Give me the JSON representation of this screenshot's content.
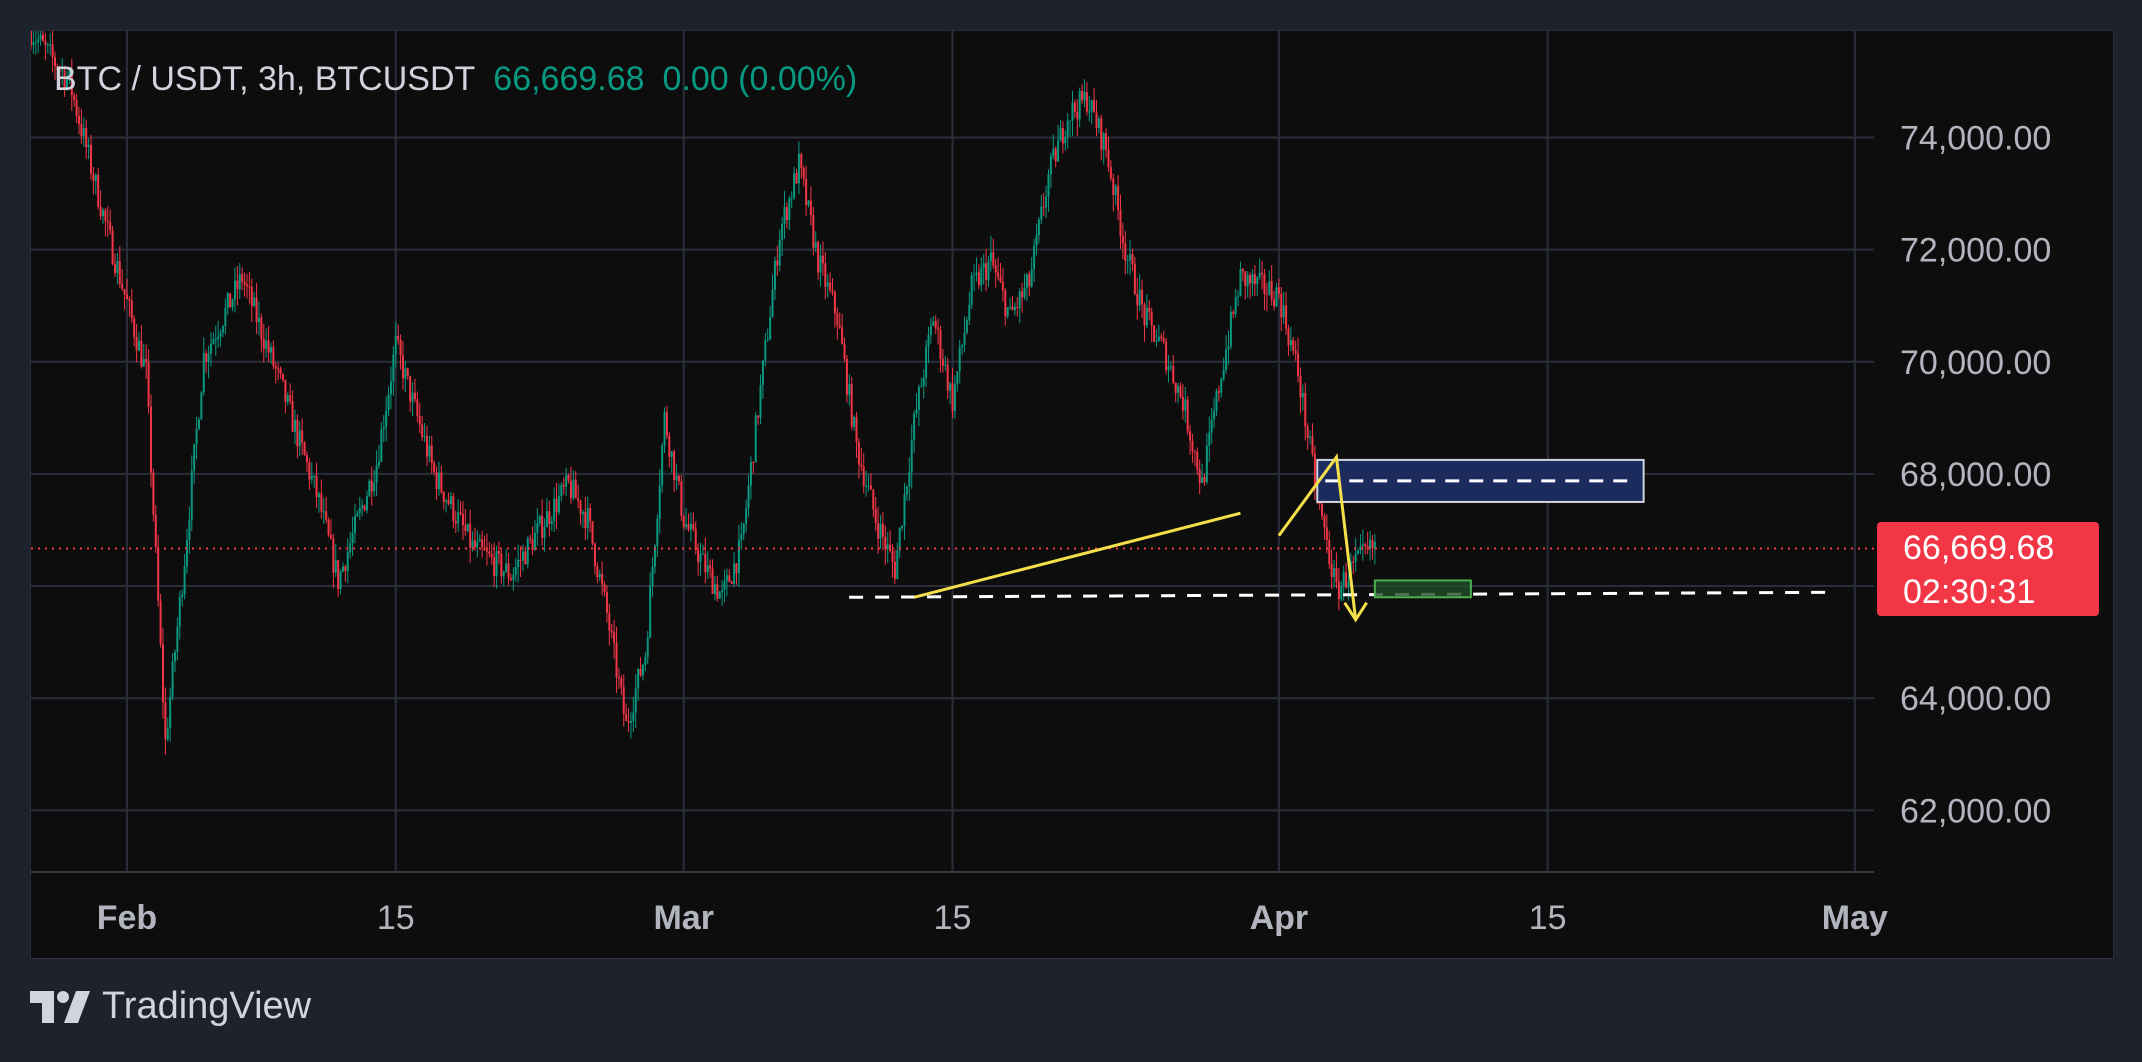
{
  "header": {
    "symbol": "BTC / USDT, 3h, BTCUSDT",
    "last_price": "66,669.68",
    "change": "0.00 (0.00%)"
  },
  "price_badge": {
    "price": "66,669.68",
    "countdown": "02:30:31",
    "color": "#f23645"
  },
  "branding": {
    "name": "TradingView",
    "icon": "tradingview-logo-icon"
  },
  "colors": {
    "up": "#089981",
    "down": "#f23645",
    "grid": "#2a2e39",
    "annotation": "#f5e04a",
    "zone_fill": "#1b2b5e",
    "zone_green": "#4caf50"
  },
  "chart_data": {
    "type": "candlestick",
    "title": "BTC / USDT, 3h, BTCUSDT",
    "x_range": [
      "2024-01-27",
      "2024-05-02"
    ],
    "y_range": [
      60900,
      75900
    ],
    "grid": true,
    "x_ticks": [
      {
        "label": "Feb",
        "date": "2024-02-01",
        "bold": true
      },
      {
        "label": "15",
        "date": "2024-02-15",
        "bold": false
      },
      {
        "label": "Mar",
        "date": "2024-03-01",
        "bold": true
      },
      {
        "label": "15",
        "date": "2024-03-15",
        "bold": false
      },
      {
        "label": "Apr",
        "date": "2024-04-01",
        "bold": true
      },
      {
        "label": "15",
        "date": "2024-04-15",
        "bold": false
      },
      {
        "label": "May",
        "date": "2024-05-01",
        "bold": true
      }
    ],
    "y_ticks": [
      {
        "label": "74,000.00",
        "value": 74000
      },
      {
        "label": "72,000.00",
        "value": 72000
      },
      {
        "label": "70,000.00",
        "value": 70000
      },
      {
        "label": "68,000.00",
        "value": 68000
      },
      {
        "label": "64,000.00",
        "value": 64000
      },
      {
        "label": "62,000.00",
        "value": 62000
      }
    ],
    "extra_gridline": 66000,
    "last_price": 66669.68,
    "price_path": [
      [
        "2024-01-27",
        75900
      ],
      [
        "2024-01-29",
        75000
      ],
      [
        "2024-01-31",
        72300
      ],
      [
        "2024-02-02",
        69800
      ],
      [
        "2024-02-03",
        63200
      ],
      [
        "2024-02-04",
        66500
      ],
      [
        "2024-02-05",
        70100
      ],
      [
        "2024-02-07",
        71500
      ],
      [
        "2024-02-09",
        69600
      ],
      [
        "2024-02-11",
        67500
      ],
      [
        "2024-02-12",
        66100
      ],
      [
        "2024-02-14",
        68200
      ],
      [
        "2024-02-15",
        70300
      ],
      [
        "2024-02-17",
        68000
      ],
      [
        "2024-02-19",
        66700
      ],
      [
        "2024-02-21",
        66200
      ],
      [
        "2024-02-23",
        67300
      ],
      [
        "2024-02-24",
        67800
      ],
      [
        "2024-02-25",
        67200
      ],
      [
        "2024-02-26",
        65500
      ],
      [
        "2024-02-27",
        63500
      ],
      [
        "2024-02-28",
        64800
      ],
      [
        "2024-02-29",
        69000
      ],
      [
        "2024-03-01",
        67200
      ],
      [
        "2024-03-02",
        66400
      ],
      [
        "2024-03-03",
        65800
      ],
      [
        "2024-03-04",
        66700
      ],
      [
        "2024-03-05",
        69500
      ],
      [
        "2024-03-06",
        72300
      ],
      [
        "2024-03-07",
        73500
      ],
      [
        "2024-03-08",
        71800
      ],
      [
        "2024-03-09",
        70800
      ],
      [
        "2024-03-10",
        68500
      ],
      [
        "2024-03-11",
        67200
      ],
      [
        "2024-03-12",
        66300
      ],
      [
        "2024-03-13",
        68900
      ],
      [
        "2024-03-14",
        70800
      ],
      [
        "2024-03-15",
        69300
      ],
      [
        "2024-03-16",
        71300
      ],
      [
        "2024-03-17",
        71800
      ],
      [
        "2024-03-18",
        70800
      ],
      [
        "2024-03-19",
        71400
      ],
      [
        "2024-03-20",
        73300
      ],
      [
        "2024-03-21",
        74400
      ],
      [
        "2024-03-22",
        74700
      ],
      [
        "2024-03-23",
        73800
      ],
      [
        "2024-03-24",
        72000
      ],
      [
        "2024-03-25",
        70800
      ],
      [
        "2024-03-26",
        70200
      ],
      [
        "2024-03-27",
        69300
      ],
      [
        "2024-03-28",
        67800
      ],
      [
        "2024-03-29",
        69800
      ],
      [
        "2024-03-30",
        71500
      ],
      [
        "2024-04-01",
        71200
      ],
      [
        "2024-04-02",
        69800
      ],
      [
        "2024-04-03",
        67600
      ],
      [
        "2024-04-04",
        65900
      ],
      [
        "2024-04-05",
        66400
      ],
      [
        "2024-04-06",
        66700
      ]
    ],
    "annotations": {
      "supply_zone": {
        "x0": "2024-04-03",
        "x1": "2024-04-20",
        "y0": 67500,
        "y1": 68250
      },
      "demand_zone": {
        "x0": "2024-04-06",
        "x1": "2024-04-11",
        "y0": 65800,
        "y1": 66100
      },
      "support_line": {
        "x0": "2024-03-13",
        "x1": "2024-04-30",
        "y": 65800
      },
      "trendline": {
        "x0": "2024-03-13",
        "y0": 65800,
        "x1": "2024-03-30",
        "y1": 67300
      },
      "projection": [
        [
          "2024-04-01",
          66900
        ],
        [
          "2024-04-04",
          68300
        ],
        [
          "2024-04-05",
          65400
        ]
      ]
    }
  }
}
